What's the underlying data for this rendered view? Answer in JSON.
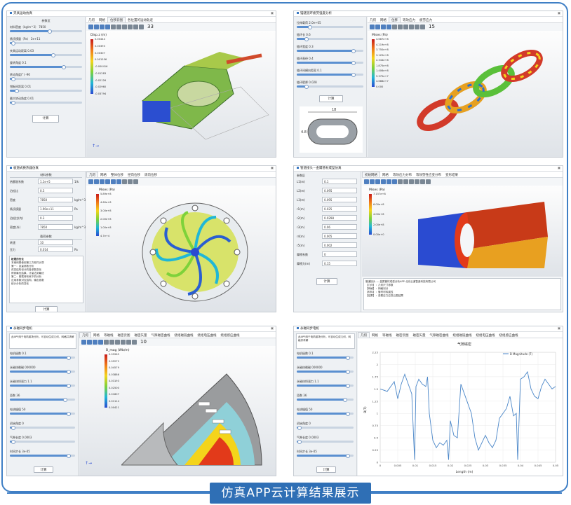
{
  "caption": "仿真APP云计算结果展示",
  "p1": {
    "title": "夹具运动仿真",
    "section": "参数区",
    "params": [
      {
        "label": "材料密度（kg/m^3） 7850",
        "pos": 0.55
      },
      {
        "label": "杨氏模量（Pa） 2e+11",
        "pos": 0.05
      },
      {
        "label": "夹具运动距离  0.03",
        "pos": 0.6
      },
      {
        "label": "旋转角度  0.1",
        "pos": 0.75
      },
      {
        "label": "转动角度(°)  -90",
        "pos": 0.05
      },
      {
        "label": "钳板间距离  0.01",
        "pos": 0.1
      },
      {
        "label": "最大转动角度  0.01",
        "pos": 0.05
      }
    ],
    "compute": "计算",
    "tabs": [
      "几何",
      "网格",
      "位移云图",
      "各位置的运动轨迹"
    ],
    "frame": "33",
    "legend_title": "Disp.z (m)",
    "legend_vals": [
      "0.00444",
      "0.00393",
      "0.00307",
      "0.001556",
      "-0.000416",
      "-0.01283",
      "-0.02126",
      "-0.02960",
      "-0.03794"
    ]
  },
  "p2": {
    "title": "锚链链环疲劳强度分析",
    "params": [
      {
        "label": "拉伸载荷  2.0e+05",
        "pos": 0.2
      },
      {
        "label": "链环长  0.6",
        "pos": 0.15
      },
      {
        "label": "链环宽度  0.3",
        "pos": 0.85
      },
      {
        "label": "链环直径  0.4",
        "pos": 0.85
      },
      {
        "label": "链环间横向距离  0.1",
        "pos": 0.85
      },
      {
        "label": "链环壁厚  0.028",
        "pos": 0.15
      }
    ],
    "compute": "计算",
    "dim_a": "18",
    "dim_b": "4.8",
    "tabs": [
      "几何",
      "网格",
      "位移",
      "等效应力",
      "疲劳应力"
    ],
    "frame": "15",
    "legend_title": "Mises (Pa)",
    "legend_vals": [
      "4.687e+8",
      "4.219e+8",
      "3.750e+8",
      "3.125e+8",
      "2.344e+8",
      "1.875e+8",
      "1.406e+8",
      "9.375e+7",
      "4.688e+7",
      "0.000"
    ]
  },
  "p3": {
    "title": "板翅式换热器仿真",
    "sec1": "材料参数",
    "rows": [
      {
        "label": "热膨胀系数",
        "value": "1.1e+5",
        "unit": "1/k"
      },
      {
        "label": "泊松比",
        "value": "0.3",
        "unit": ""
      },
      {
        "label": "密度",
        "value": "7850",
        "unit": "kg/m^3"
      },
      {
        "label": "杨氏模量",
        "value": "1.90e+11",
        "unit": "Pa"
      },
      {
        "label": "泊松比(内)",
        "value": "0.3",
        "unit": ""
      },
      {
        "label": "密度(外)",
        "value": "7850",
        "unit": "kg/m^3"
      }
    ],
    "sec2": "载荷参数",
    "rows2": [
      {
        "label": "转速",
        "value": "10",
        "unit": ""
      },
      {
        "label": "压力",
        "value": "0.014",
        "unit": "Pa"
      }
    ],
    "notes_title": "板翅的优化",
    "notes": [
      "本案例是使用第三方软件计算",
      "第一：变量参数分析",
      "改变结构设计的各参数变化",
      "得到最优结果，计量达到最优",
      "第二：受载荷布局下的分析",
      "应用参数对应结构，输出参数",
      "统计分析的变化"
    ],
    "compute": "计算",
    "tabs": [
      "几何",
      "网格",
      "整体位移",
      "径向位移",
      "周向位移"
    ],
    "legend_title": "Mises (Pa)",
    "legend_vals": [
      "5.89e+8",
      "4.60e+8",
      "3.00e+8",
      "2.00e+8",
      "1.00e+8",
      "4.7e+4"
    ]
  },
  "p4": {
    "title": "管道接头－金属管材成型仿真",
    "head": "参数区",
    "rows": [
      {
        "label": "L1(m)",
        "value": "0.1"
      },
      {
        "label": "L2(m)",
        "value": "0.095"
      },
      {
        "label": "L3(m)",
        "value": "0.095"
      },
      {
        "label": "r1(m)",
        "value": "0.025"
      },
      {
        "label": "r2(m)",
        "value": "0.0298"
      },
      {
        "label": "r3(m)",
        "value": "0.06"
      },
      {
        "label": "r4(m)",
        "value": "0.005"
      },
      {
        "label": "r5(m)",
        "value": "0.002"
      },
      {
        "label": "摩擦系数",
        "value": "0"
      },
      {
        "label": "摩擦力(m)",
        "value": "0.15"
      }
    ],
    "compute": "计算",
    "tabs": [
      "初始网格",
      "网格",
      "等效应力分布",
      "等效塑性应变分布",
      "变形结果"
    ],
    "legend_title": "Mises (Pa)",
    "legend_vals": [
      "7.157e+8",
      "6.00e+8",
      "4.00e+8",
      "2.00e+8",
      "0.00e+0"
    ],
    "notes": [
      "管道接头 — 金属管材成型分析APP    北京云道智造科技有限公司",
      "【几何】：几何尺寸参数",
      "【网格】：网格划分",
      "【材料】：管材材料属性",
      "【结果】：查看应力应变云图结果"
    ]
  },
  "p5": {
    "title": "永磁同步电机",
    "desc": "此APP用于电机磁场分析，可自动生成几何、网格并求解",
    "params": [
      {
        "label": "电机极数  0.1",
        "pos": 0.9
      },
      {
        "label": "永磁体剩磁  000000",
        "pos": 0.9
      },
      {
        "label": "永磁体矫顽力  1.1",
        "pos": 0.9
      },
      {
        "label": "匝数  36",
        "pos": 0.85
      },
      {
        "label": "电流幅值  50",
        "pos": 0.9
      },
      {
        "label": "初始角度  0",
        "pos": 0.05
      },
      {
        "label": "气隙长度  0.0003",
        "pos": 0.05
      },
      {
        "label": "时间步长  3e-05",
        "pos": 0.9
      }
    ],
    "compute": "计算",
    "tabs": [
      "几何",
      "网格",
      "等磁线",
      "磁密云图",
      "磁密矢量",
      "气隙磁密曲线",
      "绕组磁链曲线",
      "绕组电压曲线",
      "绕组感应曲线"
    ],
    "frame": "10",
    "legend_title": "B_mag (Wb/m)",
    "legend_vals": [
      "0.05965",
      "0.05272",
      "0.04579",
      "0.03886",
      "0.03193",
      "0.02500",
      "0.01807",
      "0.01114",
      "0.00421"
    ]
  },
  "p6": {
    "title": "永磁同步电机",
    "desc": "此APP用于电机磁场分析，可自动生成几何、网格并求解",
    "params": [
      {
        "label": "电机极数  0.1",
        "pos": 0.9
      },
      {
        "label": "永磁体剩磁  000000",
        "pos": 0.9
      },
      {
        "label": "永磁体矫顽力  1.1",
        "pos": 0.9
      },
      {
        "label": "匝数  36",
        "pos": 0.85
      },
      {
        "label": "电流幅值  50",
        "pos": 0.9
      },
      {
        "label": "初始角度  0",
        "pos": 0.05
      },
      {
        "label": "气隙长度  0.0003",
        "pos": 0.05
      },
      {
        "label": "时间步长  3e-05",
        "pos": 0.9
      }
    ],
    "compute": "计算",
    "tabs": [
      "几何",
      "网格",
      "等磁线",
      "磁密云图",
      "磁密矢量",
      "气隙磁密曲线",
      "绕组磁链曲线",
      "绕组电压曲线",
      "绕组感应曲线"
    ]
  },
  "chart_data": {
    "type": "line",
    "title": "气隙磁密",
    "xlabel": "Length (m)",
    "ylabel": "B(T)",
    "legend": "B Magnitude (T)",
    "legend_position": "top-right",
    "xlim": [
      0,
      0.05
    ],
    "ylim": [
      0,
      2.25
    ],
    "xticks": [
      "0",
      "0.005",
      "0.01",
      "0.015",
      "0.02",
      "0.025",
      "0.03",
      "0.035",
      "0.04",
      "0.045",
      "0.05"
    ],
    "yticks": [
      "0",
      "0.25",
      "0.5",
      "0.75",
      "1",
      "1.25",
      "1.5",
      "1.75",
      "2",
      "2.25"
    ],
    "grid": true,
    "series": [
      {
        "name": "B Magnitude (T)",
        "x": [
          0,
          0.002,
          0.004,
          0.005,
          0.006,
          0.007,
          0.008,
          0.009,
          0.0098,
          0.0102,
          0.011,
          0.012,
          0.013,
          0.0135,
          0.014,
          0.015,
          0.016,
          0.017,
          0.018,
          0.019,
          0.0195,
          0.02,
          0.021,
          0.022,
          0.023,
          0.024,
          0.025,
          0.026,
          0.027,
          0.028,
          0.029,
          0.03,
          0.031,
          0.032,
          0.033,
          0.034,
          0.035,
          0.036,
          0.037,
          0.038,
          0.0388,
          0.0392,
          0.04,
          0.041,
          0.042,
          0.043,
          0.044,
          0.045,
          0.046,
          0.047,
          0.048,
          0.049,
          0.05
        ],
        "y": [
          1.5,
          1.45,
          1.65,
          1.3,
          1.6,
          1.8,
          1.6,
          1.4,
          0.05,
          1.55,
          1.7,
          1.6,
          1.55,
          1.75,
          1.0,
          0.45,
          0.3,
          0.4,
          0.35,
          0.45,
          0.05,
          0.85,
          0.55,
          0.5,
          1.6,
          1.4,
          1.2,
          1.0,
          0.5,
          0.25,
          0.4,
          0.55,
          0.4,
          0.3,
          0.45,
          0.9,
          1.0,
          1.1,
          1.35,
          0.95,
          1.0,
          0.05,
          1.7,
          1.75,
          1.85,
          1.5,
          1.35,
          1.3,
          1.55,
          1.7,
          1.6,
          1.5,
          1.55
        ]
      }
    ]
  }
}
